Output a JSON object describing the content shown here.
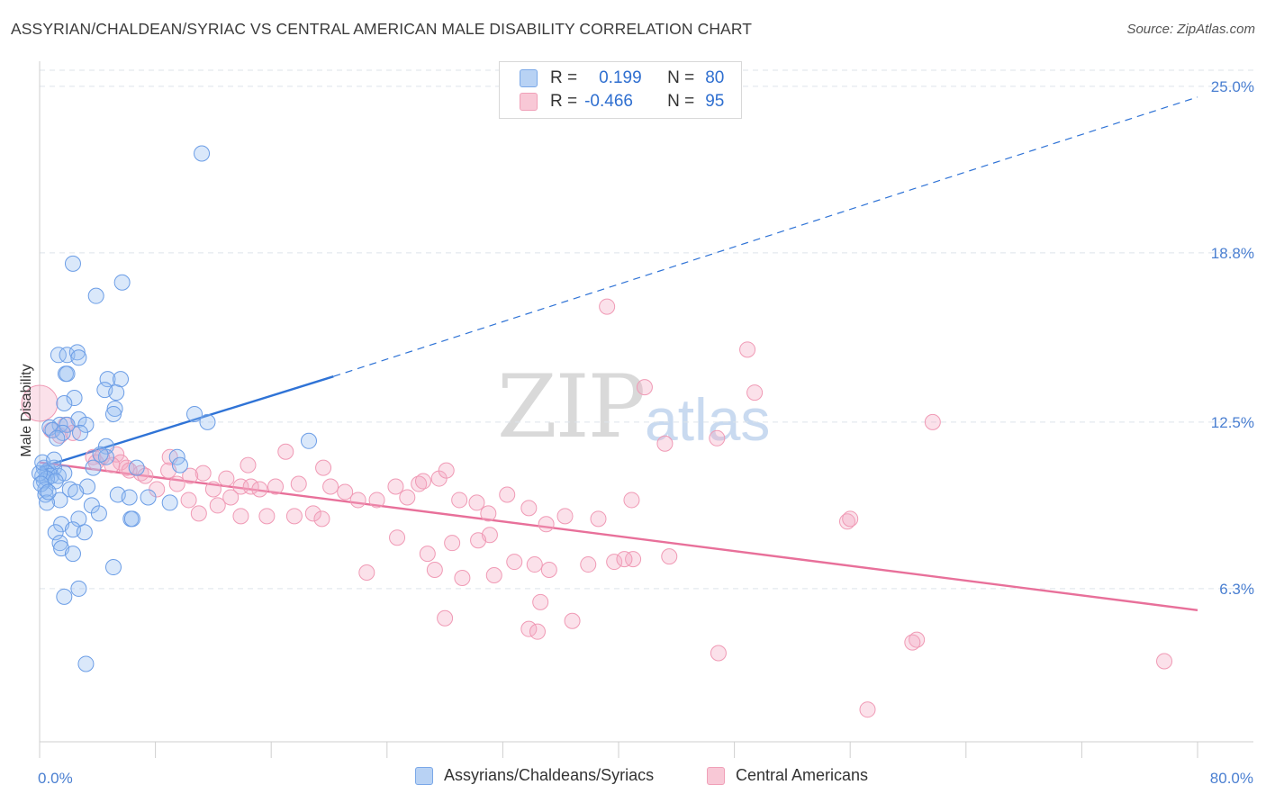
{
  "title": "ASSYRIAN/CHALDEAN/SYRIAC VS CENTRAL AMERICAN MALE DISABILITY CORRELATION CHART",
  "source": "Source: ZipAtlas.com",
  "watermark": {
    "part1": "ZIP",
    "part2": "atlas"
  },
  "legend": {
    "rows": [
      {
        "r_label": "R =",
        "r_value": "0.199",
        "n_label": "N =",
        "n_value": "80",
        "color": "#7aa8e8"
      },
      {
        "r_label": "R =",
        "r_value": "-0.466",
        "n_label": "N =",
        "n_value": "95",
        "color": "#f0a0b8"
      }
    ]
  },
  "bottom_legend": [
    {
      "label": "Assyrians/Chaldeans/Syriacs",
      "color": "#7aa8e8"
    },
    {
      "label": "Central Americans",
      "color": "#f0a0b8"
    }
  ],
  "colors": {
    "blue": "#5a8fe0",
    "blue_line": "#2f73d6",
    "pink": "#f08aa8",
    "pink_line": "#e8709a",
    "grid": "#dde3ea"
  },
  "chart_data": {
    "type": "scatter",
    "title": "ASSYRIAN/CHALDEAN/SYRIAC VS CENTRAL AMERICAN MALE DISABILITY CORRELATION CHART",
    "xlabel": "",
    "ylabel": "Male Disability",
    "xlim": [
      0,
      80
    ],
    "ylim": [
      0.6,
      25.6
    ],
    "x_tick_labels": [
      {
        "value": 0,
        "label": "0.0%"
      },
      {
        "value": 80,
        "label": "80.0%"
      }
    ],
    "y_ticks": [
      {
        "value": 6.3,
        "label": "6.3%"
      },
      {
        "value": 12.5,
        "label": "12.5%"
      },
      {
        "value": 18.8,
        "label": "18.8%"
      },
      {
        "value": 25.0,
        "label": "25.0%"
      }
    ],
    "series": [
      {
        "name": "Assyrians/Chaldeans/Syriacs",
        "trend": {
          "x0": 0,
          "y0": 10.8,
          "x1": 20.3,
          "y1": 14.2,
          "x_dash_end": 80,
          "y_dash_end": 24.6
        },
        "points": [
          [
            11.2,
            22.5
          ],
          [
            2.3,
            18.4
          ],
          [
            5.7,
            17.7
          ],
          [
            3.9,
            17.2
          ],
          [
            1.3,
            15.0
          ],
          [
            1.9,
            15.0
          ],
          [
            2.6,
            15.1
          ],
          [
            2.7,
            14.9
          ],
          [
            1.8,
            14.3
          ],
          [
            1.9,
            14.3
          ],
          [
            4.7,
            14.1
          ],
          [
            5.6,
            14.1
          ],
          [
            4.5,
            13.7
          ],
          [
            5.3,
            13.6
          ],
          [
            2.4,
            13.4
          ],
          [
            1.7,
            13.2
          ],
          [
            5.2,
            13.0
          ],
          [
            5.1,
            12.8
          ],
          [
            10.7,
            12.8
          ],
          [
            11.6,
            12.5
          ],
          [
            2.7,
            12.6
          ],
          [
            1.4,
            12.4
          ],
          [
            1.9,
            12.4
          ],
          [
            3.2,
            12.4
          ],
          [
            0.7,
            12.3
          ],
          [
            0.9,
            12.2
          ],
          [
            1.6,
            12.1
          ],
          [
            2.8,
            12.1
          ],
          [
            18.6,
            11.8
          ],
          [
            1.2,
            11.9
          ],
          [
            4.6,
            11.6
          ],
          [
            4.6,
            11.2
          ],
          [
            4.2,
            11.3
          ],
          [
            9.5,
            11.2
          ],
          [
            9.7,
            10.9
          ],
          [
            6.7,
            10.8
          ],
          [
            3.7,
            10.8
          ],
          [
            0.3,
            10.8
          ],
          [
            0.6,
            10.7
          ],
          [
            1.0,
            10.8
          ],
          [
            0.5,
            10.6
          ],
          [
            0.2,
            10.5
          ],
          [
            0.8,
            10.5
          ],
          [
            1.3,
            10.5
          ],
          [
            1.7,
            10.6
          ],
          [
            0.3,
            10.3
          ],
          [
            0.5,
            10.4
          ],
          [
            1.1,
            10.3
          ],
          [
            0.4,
            10.0
          ],
          [
            3.3,
            10.1
          ],
          [
            2.1,
            10.0
          ],
          [
            2.5,
            9.9
          ],
          [
            0.4,
            9.8
          ],
          [
            5.4,
            9.8
          ],
          [
            6.2,
            9.7
          ],
          [
            1.4,
            9.6
          ],
          [
            7.5,
            9.7
          ],
          [
            9.0,
            9.5
          ],
          [
            0.5,
            9.5
          ],
          [
            3.6,
            9.4
          ],
          [
            4.1,
            9.1
          ],
          [
            2.7,
            8.9
          ],
          [
            6.3,
            8.9
          ],
          [
            6.4,
            8.9
          ],
          [
            1.5,
            8.7
          ],
          [
            1.1,
            8.4
          ],
          [
            2.3,
            8.5
          ],
          [
            3.1,
            8.4
          ],
          [
            1.4,
            8.0
          ],
          [
            1.5,
            7.8
          ],
          [
            2.3,
            7.6
          ],
          [
            5.1,
            7.1
          ],
          [
            2.7,
            6.3
          ],
          [
            1.7,
            6.0
          ],
          [
            3.2,
            3.5
          ],
          [
            0.0,
            10.6
          ],
          [
            0.2,
            11.0
          ],
          [
            0.1,
            10.2
          ],
          [
            0.6,
            9.9
          ],
          [
            1.0,
            11.1
          ]
        ]
      },
      {
        "name": "Central Americans",
        "trend": {
          "x0": 0,
          "y0": 11.0,
          "x1": 80,
          "y1": 5.5
        },
        "points": [
          [
            0.0,
            13.2
          ],
          [
            0.8,
            12.2
          ],
          [
            1.8,
            12.4
          ],
          [
            1.4,
            12.0
          ],
          [
            2.3,
            12.1
          ],
          [
            3.7,
            11.2
          ],
          [
            4.3,
            11.2
          ],
          [
            5.3,
            11.3
          ],
          [
            5.6,
            11.0
          ],
          [
            6.0,
            10.8
          ],
          [
            7.0,
            10.6
          ],
          [
            3.9,
            11.0
          ],
          [
            6.2,
            10.7
          ],
          [
            8.9,
            10.7
          ],
          [
            9.5,
            10.2
          ],
          [
            11.3,
            10.6
          ],
          [
            10.4,
            10.5
          ],
          [
            12.9,
            10.4
          ],
          [
            13.9,
            10.1
          ],
          [
            14.6,
            10.1
          ],
          [
            15.2,
            10.0
          ],
          [
            17.0,
            11.4
          ],
          [
            16.3,
            10.1
          ],
          [
            17.9,
            10.2
          ],
          [
            20.1,
            10.1
          ],
          [
            19.6,
            10.8
          ],
          [
            21.1,
            9.9
          ],
          [
            22.0,
            9.6
          ],
          [
            23.3,
            9.6
          ],
          [
            24.6,
            10.1
          ],
          [
            25.4,
            9.7
          ],
          [
            26.2,
            10.2
          ],
          [
            26.5,
            10.3
          ],
          [
            27.6,
            10.4
          ],
          [
            28.1,
            10.7
          ],
          [
            29.0,
            9.6
          ],
          [
            30.2,
            9.5
          ],
          [
            31.0,
            9.1
          ],
          [
            32.3,
            9.8
          ],
          [
            33.8,
            9.3
          ],
          [
            35.0,
            8.7
          ],
          [
            36.3,
            9.0
          ],
          [
            38.6,
            8.9
          ],
          [
            13.9,
            9.0
          ],
          [
            13.2,
            9.7
          ],
          [
            12.3,
            9.4
          ],
          [
            11.0,
            9.1
          ],
          [
            15.7,
            9.0
          ],
          [
            17.6,
            9.0
          ],
          [
            18.9,
            9.1
          ],
          [
            19.5,
            8.9
          ],
          [
            24.7,
            8.2
          ],
          [
            26.8,
            7.6
          ],
          [
            28.5,
            8.0
          ],
          [
            31.1,
            8.3
          ],
          [
            30.3,
            8.1
          ],
          [
            32.8,
            7.3
          ],
          [
            34.2,
            7.2
          ],
          [
            35.2,
            7.0
          ],
          [
            37.9,
            7.2
          ],
          [
            39.7,
            7.3
          ],
          [
            41.0,
            7.4
          ],
          [
            43.5,
            7.5
          ],
          [
            40.4,
            7.4
          ],
          [
            22.6,
            6.9
          ],
          [
            27.3,
            7.0
          ],
          [
            29.2,
            6.7
          ],
          [
            31.4,
            6.8
          ],
          [
            34.6,
            5.8
          ],
          [
            33.8,
            4.8
          ],
          [
            34.4,
            4.7
          ],
          [
            36.8,
            5.1
          ],
          [
            28.0,
            5.2
          ],
          [
            39.2,
            16.8
          ],
          [
            41.8,
            13.8
          ],
          [
            49.4,
            13.6
          ],
          [
            48.9,
            15.2
          ],
          [
            43.2,
            11.7
          ],
          [
            46.8,
            11.9
          ],
          [
            61.7,
            12.5
          ],
          [
            40.9,
            9.6
          ],
          [
            55.8,
            8.8
          ],
          [
            56.0,
            8.9
          ],
          [
            60.6,
            4.4
          ],
          [
            60.3,
            4.3
          ],
          [
            46.9,
            3.9
          ],
          [
            57.2,
            1.8
          ],
          [
            77.7,
            3.6
          ],
          [
            10.3,
            9.6
          ],
          [
            8.1,
            10.0
          ],
          [
            7.3,
            10.5
          ],
          [
            9.0,
            11.2
          ],
          [
            12.0,
            10.0
          ],
          [
            14.4,
            10.9
          ],
          [
            5.0,
            10.9
          ]
        ]
      }
    ]
  }
}
